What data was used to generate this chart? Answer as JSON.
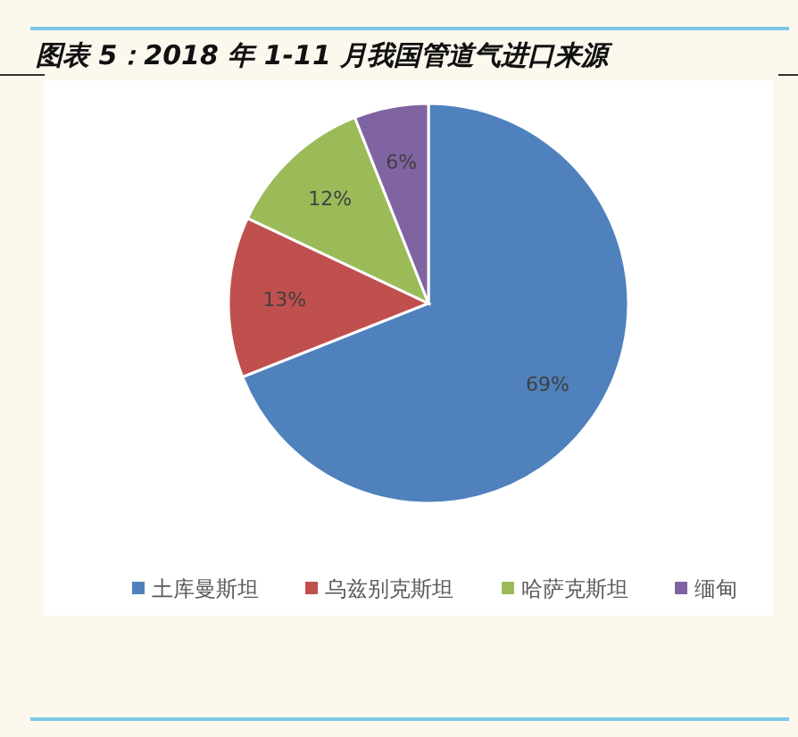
{
  "chart_data": {
    "type": "pie",
    "title": "图表 5：2018 年 1-11 月我国管道气进口来源",
    "categories": [
      "土库曼斯坦",
      "乌兹别克斯坦",
      "哈萨克斯坦",
      "缅甸"
    ],
    "values": [
      69,
      13,
      12,
      6
    ],
    "colors": [
      "#4f81bd",
      "#c0504d",
      "#9bbb59",
      "#8064a2"
    ],
    "value_labels": [
      "69%",
      "13%",
      "12%",
      "6%"
    ],
    "legend": "bottom"
  }
}
